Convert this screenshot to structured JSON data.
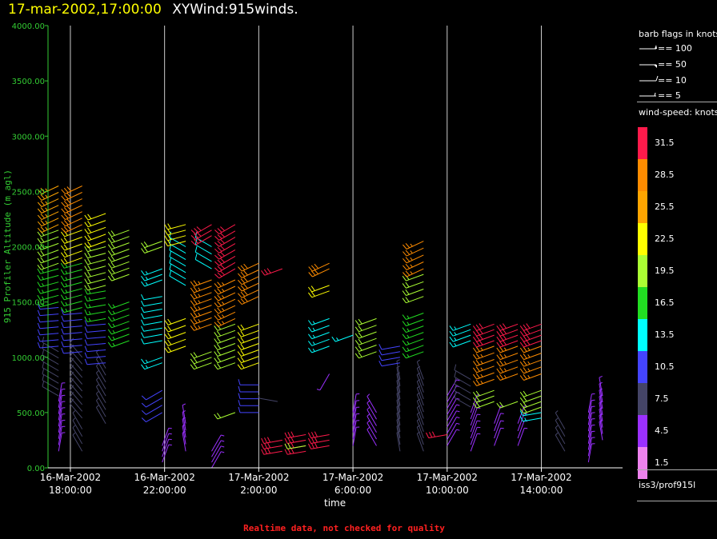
{
  "header": {
    "date_text": "17-mar-2002,17:00:00",
    "name_text": "XYWind:915winds."
  },
  "note": "Realtime data, not checked for quality",
  "legend": {
    "barb_title": "barb flags in knots",
    "barbs": [
      {
        "label": "== 100",
        "value": 100
      },
      {
        "label": "== 50",
        "value": 50
      },
      {
        "label": "== 10",
        "value": 10
      },
      {
        "label": "== 5",
        "value": 5
      }
    ],
    "speed_title": "wind-speed: knots",
    "station": "iss3/prof915l"
  },
  "colors": {
    "axis": "#33cc33",
    "gridline": "#cccccc",
    "scale": [
      "#ff1a4b",
      "#ff8c00",
      "#ffa500",
      "#ffff00",
      "#aaff33",
      "#22dd22",
      "#00ffff",
      "#4444ff",
      "#444466",
      "#9b30ff",
      "#ee82ee"
    ]
  },
  "chart_data": {
    "type": "wind-barb",
    "xlabel": "time",
    "ylabel": "915 Profiler Altitude (m agl)",
    "ylim": [
      0,
      4000
    ],
    "yticks": [
      "0.00",
      "500.00",
      "1000.00",
      "1500.00",
      "2000.00",
      "2500.00",
      "3000.00",
      "3500.00",
      "4000.00"
    ],
    "xlim_hours": [
      17.05,
      41.45
    ],
    "xticks": [
      {
        "date": "16-Mar-2002",
        "time": "18:00:00",
        "hour": 18
      },
      {
        "date": "16-Mar-2002",
        "time": "22:00:00",
        "hour": 22
      },
      {
        "date": "17-Mar-2002",
        "time": "2:00:00",
        "hour": 26
      },
      {
        "date": "17-Mar-2002",
        "time": "6:00:00",
        "hour": 30
      },
      {
        "date": "17-Mar-2002",
        "time": "10:00:00",
        "hour": 34
      },
      {
        "date": "17-Mar-2002",
        "time": "14:00:00",
        "hour": 38
      }
    ],
    "color_scale": {
      "labels": [
        "31.5",
        "28.5",
        "25.5",
        "22.5",
        "19.5",
        "16.5",
        "13.5",
        "10.5",
        "7.5",
        "4.5",
        "1.5"
      ]
    },
    "profiles": [
      {
        "time": "16-Mar-2002 17:30",
        "hour": 17.5,
        "segments": [
          {
            "z0": 150,
            "z1": 600,
            "speed": 5,
            "dir": 10
          },
          {
            "z0": 650,
            "z1": 1050,
            "speed": 8,
            "dir": 300
          },
          {
            "z0": 1100,
            "z1": 1450,
            "speed": 11,
            "dir": 265
          },
          {
            "z0": 1500,
            "z1": 1800,
            "speed": 15,
            "dir": 255
          },
          {
            "z0": 1850,
            "z1": 2150,
            "speed": 19,
            "dir": 250
          },
          {
            "z0": 2200,
            "z1": 2550,
            "speed": 25,
            "dir": 245
          }
        ]
      },
      {
        "time": "16-Mar-2002 18:30",
        "hour": 18.5,
        "segments": [
          {
            "z0": 150,
            "z1": 350,
            "speed": 6,
            "dir": 330
          },
          {
            "z0": 450,
            "z1": 1000,
            "speed": 8,
            "dir": 320
          },
          {
            "z0": 1050,
            "z1": 1400,
            "speed": 11,
            "dir": 265
          },
          {
            "z0": 1450,
            "z1": 1850,
            "speed": 16,
            "dir": 255
          },
          {
            "z0": 1900,
            "z1": 2150,
            "speed": 22,
            "dir": 250
          },
          {
            "z0": 2200,
            "z1": 2550,
            "speed": 28,
            "dir": 245
          }
        ]
      },
      {
        "time": "16-Mar-2002 19:30",
        "hour": 19.5,
        "segments": [
          {
            "z0": 400,
            "z1": 900,
            "speed": 6,
            "dir": 330
          },
          {
            "z0": 950,
            "z1": 1300,
            "speed": 11,
            "dir": 265
          },
          {
            "z0": 1350,
            "z1": 1600,
            "speed": 15,
            "dir": 260
          },
          {
            "z0": 1650,
            "z1": 2000,
            "speed": 19,
            "dir": 255
          },
          {
            "z0": 2050,
            "z1": 2300,
            "speed": 22,
            "dir": 250
          }
        ]
      },
      {
        "time": "16-Mar-2002 20:30",
        "hour": 20.5,
        "segments": [
          {
            "z0": 1150,
            "z1": 1500,
            "speed": 16,
            "dir": 250
          },
          {
            "z0": 1750,
            "z1": 2150,
            "speed": 19,
            "dir": 250
          }
        ]
      },
      {
        "time": "16-Mar-2002 22:00",
        "hour": 21.9,
        "segments": [
          {
            "z0": 50,
            "z1": 200,
            "speed": 5,
            "dir": 20
          },
          {
            "z0": 500,
            "z1": 700,
            "speed": 10,
            "dir": 240
          },
          {
            "z0": 950,
            "z1": 1000,
            "speed": 14,
            "dir": 250
          },
          {
            "z0": 1150,
            "z1": 1550,
            "speed": 12,
            "dir": 260
          },
          {
            "z0": 1700,
            "z1": 1800,
            "speed": 14,
            "dir": 250
          },
          {
            "z0": 2000,
            "z1": 2050,
            "speed": 18,
            "dir": 250
          }
        ]
      },
      {
        "time": "16-Mar-2002 23:00",
        "hour": 22.9,
        "segments": [
          {
            "z0": 150,
            "z1": 400,
            "speed": 5,
            "dir": 350
          },
          {
            "z0": 1100,
            "z1": 1350,
            "speed": 21,
            "dir": 250
          },
          {
            "z0": 1650,
            "z1": 2000,
            "speed": 12,
            "dir": 300
          },
          {
            "z0": 2050,
            "z1": 2200,
            "speed": 22,
            "dir": 255
          }
        ]
      },
      {
        "time": "17-Mar-2002 00:00",
        "hour": 24.0,
        "segments": [
          {
            "z0": 0,
            "z1": 150,
            "speed": 5,
            "dir": 30
          },
          {
            "z0": 950,
            "z1": 1050,
            "speed": 18,
            "dir": 250
          },
          {
            "z0": 1300,
            "z1": 1700,
            "speed": 27,
            "dir": 250
          },
          {
            "z0": 1800,
            "z1": 2000,
            "speed": 12,
            "dir": 300
          },
          {
            "z0": 2100,
            "z1": 2200,
            "speed": 30,
            "dir": 240
          }
        ]
      },
      {
        "time": "17-Mar-2002 01:00",
        "hour": 25.0,
        "segments": [
          {
            "z0": 500,
            "z1": 500,
            "speed": 18,
            "dir": 250
          },
          {
            "z0": 950,
            "z1": 1300,
            "speed": 20,
            "dir": 250
          },
          {
            "z0": 1350,
            "z1": 1700,
            "speed": 27,
            "dir": 245
          },
          {
            "z0": 1800,
            "z1": 2200,
            "speed": 32,
            "dir": 240
          }
        ]
      },
      {
        "time": "17-Mar-2002 02:00",
        "hour": 26.0,
        "segments": [
          {
            "z0": 500,
            "z1": 750,
            "speed": 10,
            "dir": 270
          },
          {
            "z0": 950,
            "z1": 1300,
            "speed": 21,
            "dir": 250
          },
          {
            "z0": 1550,
            "z1": 1850,
            "speed": 28,
            "dir": 245
          }
        ]
      },
      {
        "time": "17-Mar-2002 02:50",
        "hour": 26.8,
        "segments": [
          {
            "z0": 600,
            "z1": 600,
            "speed": 7,
            "dir": 280
          }
        ]
      },
      {
        "time": "17-Mar-2002 03:00",
        "hour": 27.0,
        "segments": [
          {
            "z0": 150,
            "z1": 250,
            "speed": 32,
            "dir": 260
          },
          {
            "z0": 1800,
            "z1": 1800,
            "speed": 31,
            "dir": 250
          }
        ]
      },
      {
        "time": "17-Mar-2002 04:00",
        "hour": 28.0,
        "segments": [
          {
            "z0": 150,
            "z1": 300,
            "speed": 31,
            "dir": 260
          },
          {
            "z0": 200,
            "z1": 200,
            "speed": 20,
            "dir": 260
          }
        ]
      },
      {
        "time": "17-Mar-2002 05:00",
        "hour": 29.0,
        "segments": [
          {
            "z0": 200,
            "z1": 300,
            "speed": 31,
            "dir": 260
          },
          {
            "z0": 850,
            "z1": 850,
            "speed": 5,
            "dir": 210
          },
          {
            "z0": 1100,
            "z1": 1350,
            "speed": 13,
            "dir": 250
          },
          {
            "z0": 1600,
            "z1": 1650,
            "speed": 22,
            "dir": 250
          },
          {
            "z0": 1800,
            "z1": 1850,
            "speed": 28,
            "dir": 245
          }
        ]
      },
      {
        "time": "17-Mar-2002 06:00",
        "hour": 30.0,
        "segments": [
          {
            "z0": 200,
            "z1": 500,
            "speed": 4,
            "dir": 10
          },
          {
            "z0": 1200,
            "z1": 1200,
            "speed": 14,
            "dir": 250
          }
        ]
      },
      {
        "time": "17-Mar-2002 07:00",
        "hour": 31.0,
        "segments": [
          {
            "z0": 200,
            "z1": 500,
            "speed": 4,
            "dir": 330
          },
          {
            "z0": 1050,
            "z1": 1350,
            "speed": 20,
            "dir": 250
          }
        ]
      },
      {
        "time": "17-Mar-2002 08:00",
        "hour": 32.0,
        "segments": [
          {
            "z0": 150,
            "z1": 800,
            "speed": 6,
            "dir": 350
          },
          {
            "z0": 950,
            "z1": 1100,
            "speed": 11,
            "dir": 260
          }
        ]
      },
      {
        "time": "17-Mar-2002 09:00",
        "hour": 33.0,
        "segments": [
          {
            "z0": 150,
            "z1": 800,
            "speed": 6,
            "dir": 340
          },
          {
            "z0": 1050,
            "z1": 1400,
            "speed": 15,
            "dir": 250
          },
          {
            "z0": 1550,
            "z1": 1750,
            "speed": 19,
            "dir": 250
          },
          {
            "z0": 1800,
            "z1": 2050,
            "speed": 27,
            "dir": 245
          }
        ]
      },
      {
        "time": "17-Mar-2002 10:00",
        "hour": 34.0,
        "segments": [
          {
            "z0": 200,
            "z1": 650,
            "speed": 4,
            "dir": 30
          },
          {
            "z0": 300,
            "z1": 300,
            "speed": 32,
            "dir": 260
          }
        ]
      },
      {
        "time": "17-Mar-2002 11:00",
        "hour": 35.0,
        "segments": [
          {
            "z0": 150,
            "z1": 500,
            "speed": 4,
            "dir": 20
          },
          {
            "z0": 550,
            "z1": 800,
            "speed": 8,
            "dir": 300
          },
          {
            "z0": 1150,
            "z1": 1300,
            "speed": 14,
            "dir": 250
          }
        ]
      },
      {
        "time": "17-Mar-2002 12:00",
        "hour": 36.0,
        "segments": [
          {
            "z0": 200,
            "z1": 400,
            "speed": 4,
            "dir": 20
          },
          {
            "z0": 600,
            "z1": 700,
            "speed": 20,
            "dir": 250
          },
          {
            "z0": 800,
            "z1": 1100,
            "speed": 27,
            "dir": 250
          },
          {
            "z0": 1150,
            "z1": 1300,
            "speed": 31,
            "dir": 250
          }
        ]
      },
      {
        "time": "17-Mar-2002 13:00",
        "hour": 37.0,
        "segments": [
          {
            "z0": 200,
            "z1": 400,
            "speed": 4,
            "dir": 20
          },
          {
            "z0": 600,
            "z1": 600,
            "speed": 20,
            "dir": 250
          },
          {
            "z0": 850,
            "z1": 1100,
            "speed": 27,
            "dir": 250
          },
          {
            "z0": 1150,
            "z1": 1300,
            "speed": 31,
            "dir": 250
          }
        ]
      },
      {
        "time": "17-Mar-2002 14:00",
        "hour": 38.0,
        "segments": [
          {
            "z0": 450,
            "z1": 500,
            "speed": 14,
            "dir": 260
          },
          {
            "z0": 550,
            "z1": 700,
            "speed": 20,
            "dir": 250
          },
          {
            "z0": 850,
            "z1": 1100,
            "speed": 27,
            "dir": 250
          },
          {
            "z0": 1150,
            "z1": 1300,
            "speed": 30,
            "dir": 250
          }
        ]
      },
      {
        "time": "17-Mar-2002 15:00",
        "hour": 39.0,
        "segments": [
          {
            "z0": 150,
            "z1": 350,
            "speed": 6,
            "dir": 330
          }
        ]
      },
      {
        "time": "17-Mar-2002 16:00",
        "hour": 40.0,
        "segments": [
          {
            "z0": 50,
            "z1": 500,
            "speed": 5,
            "dir": 10
          }
        ]
      },
      {
        "time": "17-Mar-2002 16:30",
        "hour": 40.6,
        "segments": [
          {
            "z0": 250,
            "z1": 650,
            "speed": 5,
            "dir": 350
          }
        ]
      }
    ]
  }
}
